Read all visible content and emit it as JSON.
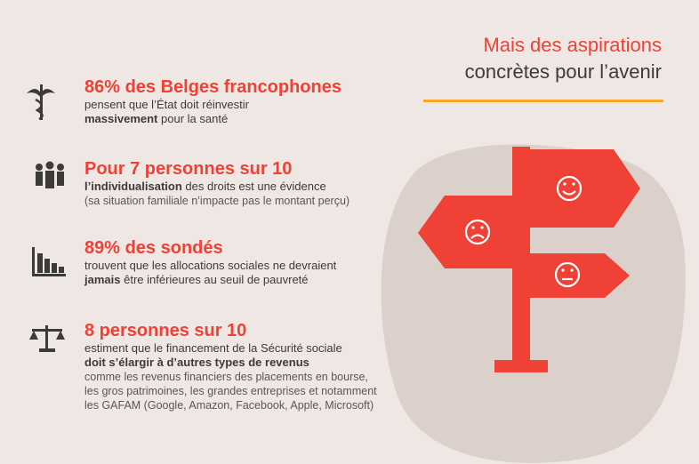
{
  "title": {
    "line1": "Mais des aspirations",
    "line2": "concrètes pour l’avenir"
  },
  "items": [
    {
      "headline": "86% des Belges francophones",
      "lines": [
        [
          "pensent que l’État doit réinvestir"
        ],
        [
          "massivement",
          "pour la santé"
        ]
      ]
    },
    {
      "headline": "Pour 7 personnes sur 10",
      "lines": [
        [
          "l’individualisation",
          "des droits est une évidence"
        ],
        [
          "(sa situation familiale n’impacte pas le montant perçu)"
        ]
      ]
    },
    {
      "headline": "89% des sondés",
      "lines": [
        [
          "trouvent que les allocations sociales ne devraient"
        ],
        [
          "jamais",
          "être inférieures au seuil de pauvreté"
        ]
      ]
    },
    {
      "headline": "8 personnes sur 10",
      "lines": [
        [
          "estiment que le financement de la Sécurité sociale"
        ],
        [
          "doit s’élargir à d’autres types de revenus"
        ],
        [
          "comme les revenus financiers des placements en bourse,"
        ],
        [
          "les gros patrimoines, les grandes entreprises et notamment"
        ],
        [
          "les GAFAM (Google, Amazon, Facebook, Apple, Microsoft)"
        ]
      ]
    }
  ]
}
